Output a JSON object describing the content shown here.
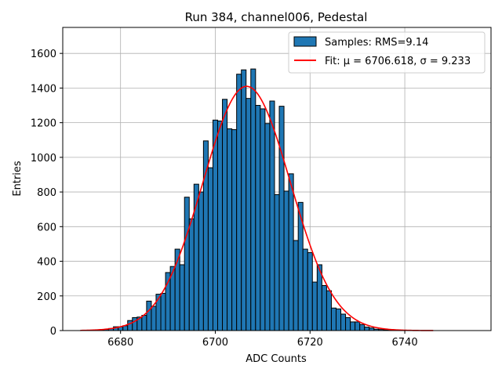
{
  "chart_data": {
    "type": "bar",
    "title": "Run 384, channel006, Pedestal",
    "xlabel": "ADC Counts",
    "ylabel": "Entries",
    "xlim": [
      6667.8,
      6758.2
    ],
    "ylim": [
      0,
      1750
    ],
    "xticks": [
      6680,
      6700,
      6720,
      6740
    ],
    "yticks": [
      0,
      200,
      400,
      600,
      800,
      1000,
      1200,
      1400,
      1600
    ],
    "grid": true,
    "legend_position": "top-right",
    "bar_color": "#1f77b4",
    "fit_color": "#ff0000",
    "series": [
      {
        "name": "Samples: RMS=9.14",
        "kind": "histogram",
        "bin_width": 1,
        "bins": [
          {
            "x": 6676,
            "y": 4
          },
          {
            "x": 6677,
            "y": 6
          },
          {
            "x": 6678,
            "y": 12
          },
          {
            "x": 6679,
            "y": 22
          },
          {
            "x": 6680,
            "y": 22
          },
          {
            "x": 6681,
            "y": 28
          },
          {
            "x": 6682,
            "y": 58
          },
          {
            "x": 6683,
            "y": 75
          },
          {
            "x": 6684,
            "y": 78
          },
          {
            "x": 6685,
            "y": 88
          },
          {
            "x": 6686,
            "y": 170
          },
          {
            "x": 6687,
            "y": 140
          },
          {
            "x": 6688,
            "y": 210
          },
          {
            "x": 6689,
            "y": 215
          },
          {
            "x": 6690,
            "y": 335
          },
          {
            "x": 6691,
            "y": 370
          },
          {
            "x": 6692,
            "y": 470
          },
          {
            "x": 6693,
            "y": 380
          },
          {
            "x": 6694,
            "y": 770
          },
          {
            "x": 6695,
            "y": 645
          },
          {
            "x": 6696,
            "y": 845
          },
          {
            "x": 6697,
            "y": 800
          },
          {
            "x": 6698,
            "y": 1095
          },
          {
            "x": 6699,
            "y": 940
          },
          {
            "x": 6700,
            "y": 1215
          },
          {
            "x": 6701,
            "y": 1210
          },
          {
            "x": 6702,
            "y": 1335
          },
          {
            "x": 6703,
            "y": 1165
          },
          {
            "x": 6704,
            "y": 1160
          },
          {
            "x": 6705,
            "y": 1480
          },
          {
            "x": 6706,
            "y": 1505
          },
          {
            "x": 6707,
            "y": 1340
          },
          {
            "x": 6708,
            "y": 1510
          },
          {
            "x": 6709,
            "y": 1300
          },
          {
            "x": 6710,
            "y": 1280
          },
          {
            "x": 6711,
            "y": 1195
          },
          {
            "x": 6712,
            "y": 1325
          },
          {
            "x": 6713,
            "y": 785
          },
          {
            "x": 6714,
            "y": 1295
          },
          {
            "x": 6715,
            "y": 805
          },
          {
            "x": 6716,
            "y": 905
          },
          {
            "x": 6717,
            "y": 520
          },
          {
            "x": 6718,
            "y": 740
          },
          {
            "x": 6719,
            "y": 470
          },
          {
            "x": 6720,
            "y": 450
          },
          {
            "x": 6721,
            "y": 280
          },
          {
            "x": 6722,
            "y": 380
          },
          {
            "x": 6723,
            "y": 260
          },
          {
            "x": 6724,
            "y": 230
          },
          {
            "x": 6725,
            "y": 130
          },
          {
            "x": 6726,
            "y": 125
          },
          {
            "x": 6727,
            "y": 95
          },
          {
            "x": 6728,
            "y": 75
          },
          {
            "x": 6729,
            "y": 50
          },
          {
            "x": 6730,
            "y": 50
          },
          {
            "x": 6731,
            "y": 35
          },
          {
            "x": 6732,
            "y": 20
          },
          {
            "x": 6733,
            "y": 15
          },
          {
            "x": 6734,
            "y": 8
          },
          {
            "x": 6735,
            "y": 6
          },
          {
            "x": 6736,
            "y": 4
          },
          {
            "x": 6737,
            "y": 2
          }
        ]
      },
      {
        "name": "Fit: μ = 6706.618, σ = 9.233",
        "kind": "gaussian_fit",
        "mu": 6706.618,
        "sigma": 9.233,
        "amplitude": 1410,
        "x_range": [
          6671.5,
          6746
        ]
      }
    ]
  }
}
